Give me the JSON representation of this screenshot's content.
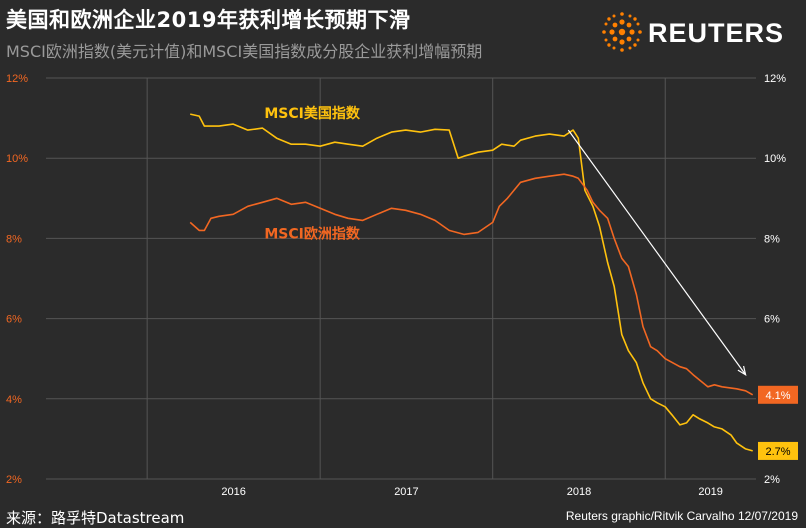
{
  "header": {
    "title": "美国和欧洲企业2019年获利增长预期下滑",
    "subtitle": "MSCI欧洲指数(美元计值)和MSCI美国指数成分股企业获利增幅预期",
    "logo_text": "REUTERS",
    "logo_icon": "reuters-dot-sphere-icon"
  },
  "footer": {
    "source": "来源：路孚特Datastream",
    "credit": "Reuters graphic/Ritvik Carvalho 12/07/2019"
  },
  "colors": {
    "background": "#2b2b2b",
    "gridline": "#555555",
    "us_series": "#ffc20e",
    "europe_series": "#f26722",
    "left_axis_text": "#f26722",
    "right_axis_text": "#ffffff",
    "arrow": "#ffffff",
    "logo_orange": "#ff8000"
  },
  "chart_data": {
    "type": "line",
    "xlim": [
      "2015-06-01",
      "2019-07-12"
    ],
    "ylim": [
      2,
      12
    ],
    "yticks": [
      2,
      4,
      6,
      8,
      10,
      12
    ],
    "ytick_labels": [
      "2%",
      "4%",
      "6%",
      "8%",
      "10%",
      "12%"
    ],
    "xticks": [
      {
        "label": "2016",
        "date": "2016-01-01"
      },
      {
        "label": "2017",
        "date": "2017-01-01"
      },
      {
        "label": "2018",
        "date": "2018-01-01"
      },
      {
        "label": "2019",
        "date": "2019-01-01"
      }
    ],
    "grid": true,
    "series": [
      {
        "name": "MSCI美国指数",
        "end_label": "2.7%",
        "points": [
          [
            "2016-04-01",
            11.1
          ],
          [
            "2016-04-20",
            11.05
          ],
          [
            "2016-05-01",
            10.8
          ],
          [
            "2016-06-01",
            10.8
          ],
          [
            "2016-07-01",
            10.85
          ],
          [
            "2016-08-01",
            10.7
          ],
          [
            "2016-09-01",
            10.75
          ],
          [
            "2016-10-01",
            10.5
          ],
          [
            "2016-11-01",
            10.35
          ],
          [
            "2016-12-01",
            10.35
          ],
          [
            "2017-01-01",
            10.3
          ],
          [
            "2017-02-01",
            10.4
          ],
          [
            "2017-03-01",
            10.35
          ],
          [
            "2017-04-01",
            10.3
          ],
          [
            "2017-05-01",
            10.5
          ],
          [
            "2017-06-01",
            10.65
          ],
          [
            "2017-07-01",
            10.7
          ],
          [
            "2017-08-01",
            10.65
          ],
          [
            "2017-09-01",
            10.72
          ],
          [
            "2017-10-01",
            10.7
          ],
          [
            "2017-10-20",
            10.0
          ],
          [
            "2017-11-01",
            10.05
          ],
          [
            "2017-12-01",
            10.15
          ],
          [
            "2018-01-01",
            10.2
          ],
          [
            "2018-01-20",
            10.35
          ],
          [
            "2018-02-15",
            10.3
          ],
          [
            "2018-03-01",
            10.45
          ],
          [
            "2018-04-01",
            10.55
          ],
          [
            "2018-05-01",
            10.6
          ],
          [
            "2018-06-01",
            10.55
          ],
          [
            "2018-06-20",
            10.7
          ],
          [
            "2018-07-01",
            10.5
          ],
          [
            "2018-07-15",
            9.2
          ],
          [
            "2018-08-01",
            8.8
          ],
          [
            "2018-08-15",
            8.3
          ],
          [
            "2018-09-01",
            7.4
          ],
          [
            "2018-09-15",
            6.8
          ],
          [
            "2018-10-01",
            5.6
          ],
          [
            "2018-10-15",
            5.2
          ],
          [
            "2018-11-01",
            4.9
          ],
          [
            "2018-11-15",
            4.4
          ],
          [
            "2018-12-01",
            4.0
          ],
          [
            "2018-12-15",
            3.9
          ],
          [
            "2019-01-01",
            3.8
          ],
          [
            "2019-01-15",
            3.6
          ],
          [
            "2019-02-01",
            3.35
          ],
          [
            "2019-02-15",
            3.4
          ],
          [
            "2019-03-01",
            3.6
          ],
          [
            "2019-03-15",
            3.5
          ],
          [
            "2019-04-01",
            3.4
          ],
          [
            "2019-04-15",
            3.3
          ],
          [
            "2019-05-01",
            3.25
          ],
          [
            "2019-05-20",
            3.1
          ],
          [
            "2019-06-01",
            2.9
          ],
          [
            "2019-06-20",
            2.75
          ],
          [
            "2019-07-05",
            2.7
          ]
        ]
      },
      {
        "name": "MSCI欧洲指数",
        "end_label": "4.1%",
        "points": [
          [
            "2016-04-01",
            8.4
          ],
          [
            "2016-04-20",
            8.2
          ],
          [
            "2016-05-01",
            8.2
          ],
          [
            "2016-05-15",
            8.5
          ],
          [
            "2016-06-01",
            8.55
          ],
          [
            "2016-07-01",
            8.6
          ],
          [
            "2016-08-01",
            8.8
          ],
          [
            "2016-09-01",
            8.9
          ],
          [
            "2016-10-01",
            9.0
          ],
          [
            "2016-11-01",
            8.85
          ],
          [
            "2016-12-01",
            8.9
          ],
          [
            "2017-01-01",
            8.75
          ],
          [
            "2017-02-01",
            8.6
          ],
          [
            "2017-03-01",
            8.5
          ],
          [
            "2017-04-01",
            8.45
          ],
          [
            "2017-05-01",
            8.6
          ],
          [
            "2017-06-01",
            8.75
          ],
          [
            "2017-07-01",
            8.7
          ],
          [
            "2017-08-01",
            8.6
          ],
          [
            "2017-09-01",
            8.45
          ],
          [
            "2017-10-01",
            8.2
          ],
          [
            "2017-11-01",
            8.1
          ],
          [
            "2017-12-01",
            8.15
          ],
          [
            "2018-01-01",
            8.4
          ],
          [
            "2018-01-15",
            8.8
          ],
          [
            "2018-02-01",
            9.0
          ],
          [
            "2018-02-15",
            9.2
          ],
          [
            "2018-03-01",
            9.4
          ],
          [
            "2018-04-01",
            9.5
          ],
          [
            "2018-05-01",
            9.55
          ],
          [
            "2018-06-01",
            9.6
          ],
          [
            "2018-06-20",
            9.55
          ],
          [
            "2018-07-01",
            9.5
          ],
          [
            "2018-07-20",
            9.2
          ],
          [
            "2018-08-01",
            8.9
          ],
          [
            "2018-08-15",
            8.7
          ],
          [
            "2018-09-01",
            8.5
          ],
          [
            "2018-09-15",
            8.0
          ],
          [
            "2018-10-01",
            7.5
          ],
          [
            "2018-10-15",
            7.3
          ],
          [
            "2018-11-01",
            6.6
          ],
          [
            "2018-11-15",
            5.8
          ],
          [
            "2018-12-01",
            5.3
          ],
          [
            "2018-12-15",
            5.2
          ],
          [
            "2019-01-01",
            5.0
          ],
          [
            "2019-02-01",
            4.8
          ],
          [
            "2019-02-15",
            4.75
          ],
          [
            "2019-03-01",
            4.6
          ],
          [
            "2019-04-01",
            4.3
          ],
          [
            "2019-04-15",
            4.35
          ],
          [
            "2019-05-01",
            4.3
          ],
          [
            "2019-06-01",
            4.25
          ],
          [
            "2019-06-20",
            4.2
          ],
          [
            "2019-07-05",
            4.1
          ]
        ]
      }
    ]
  }
}
